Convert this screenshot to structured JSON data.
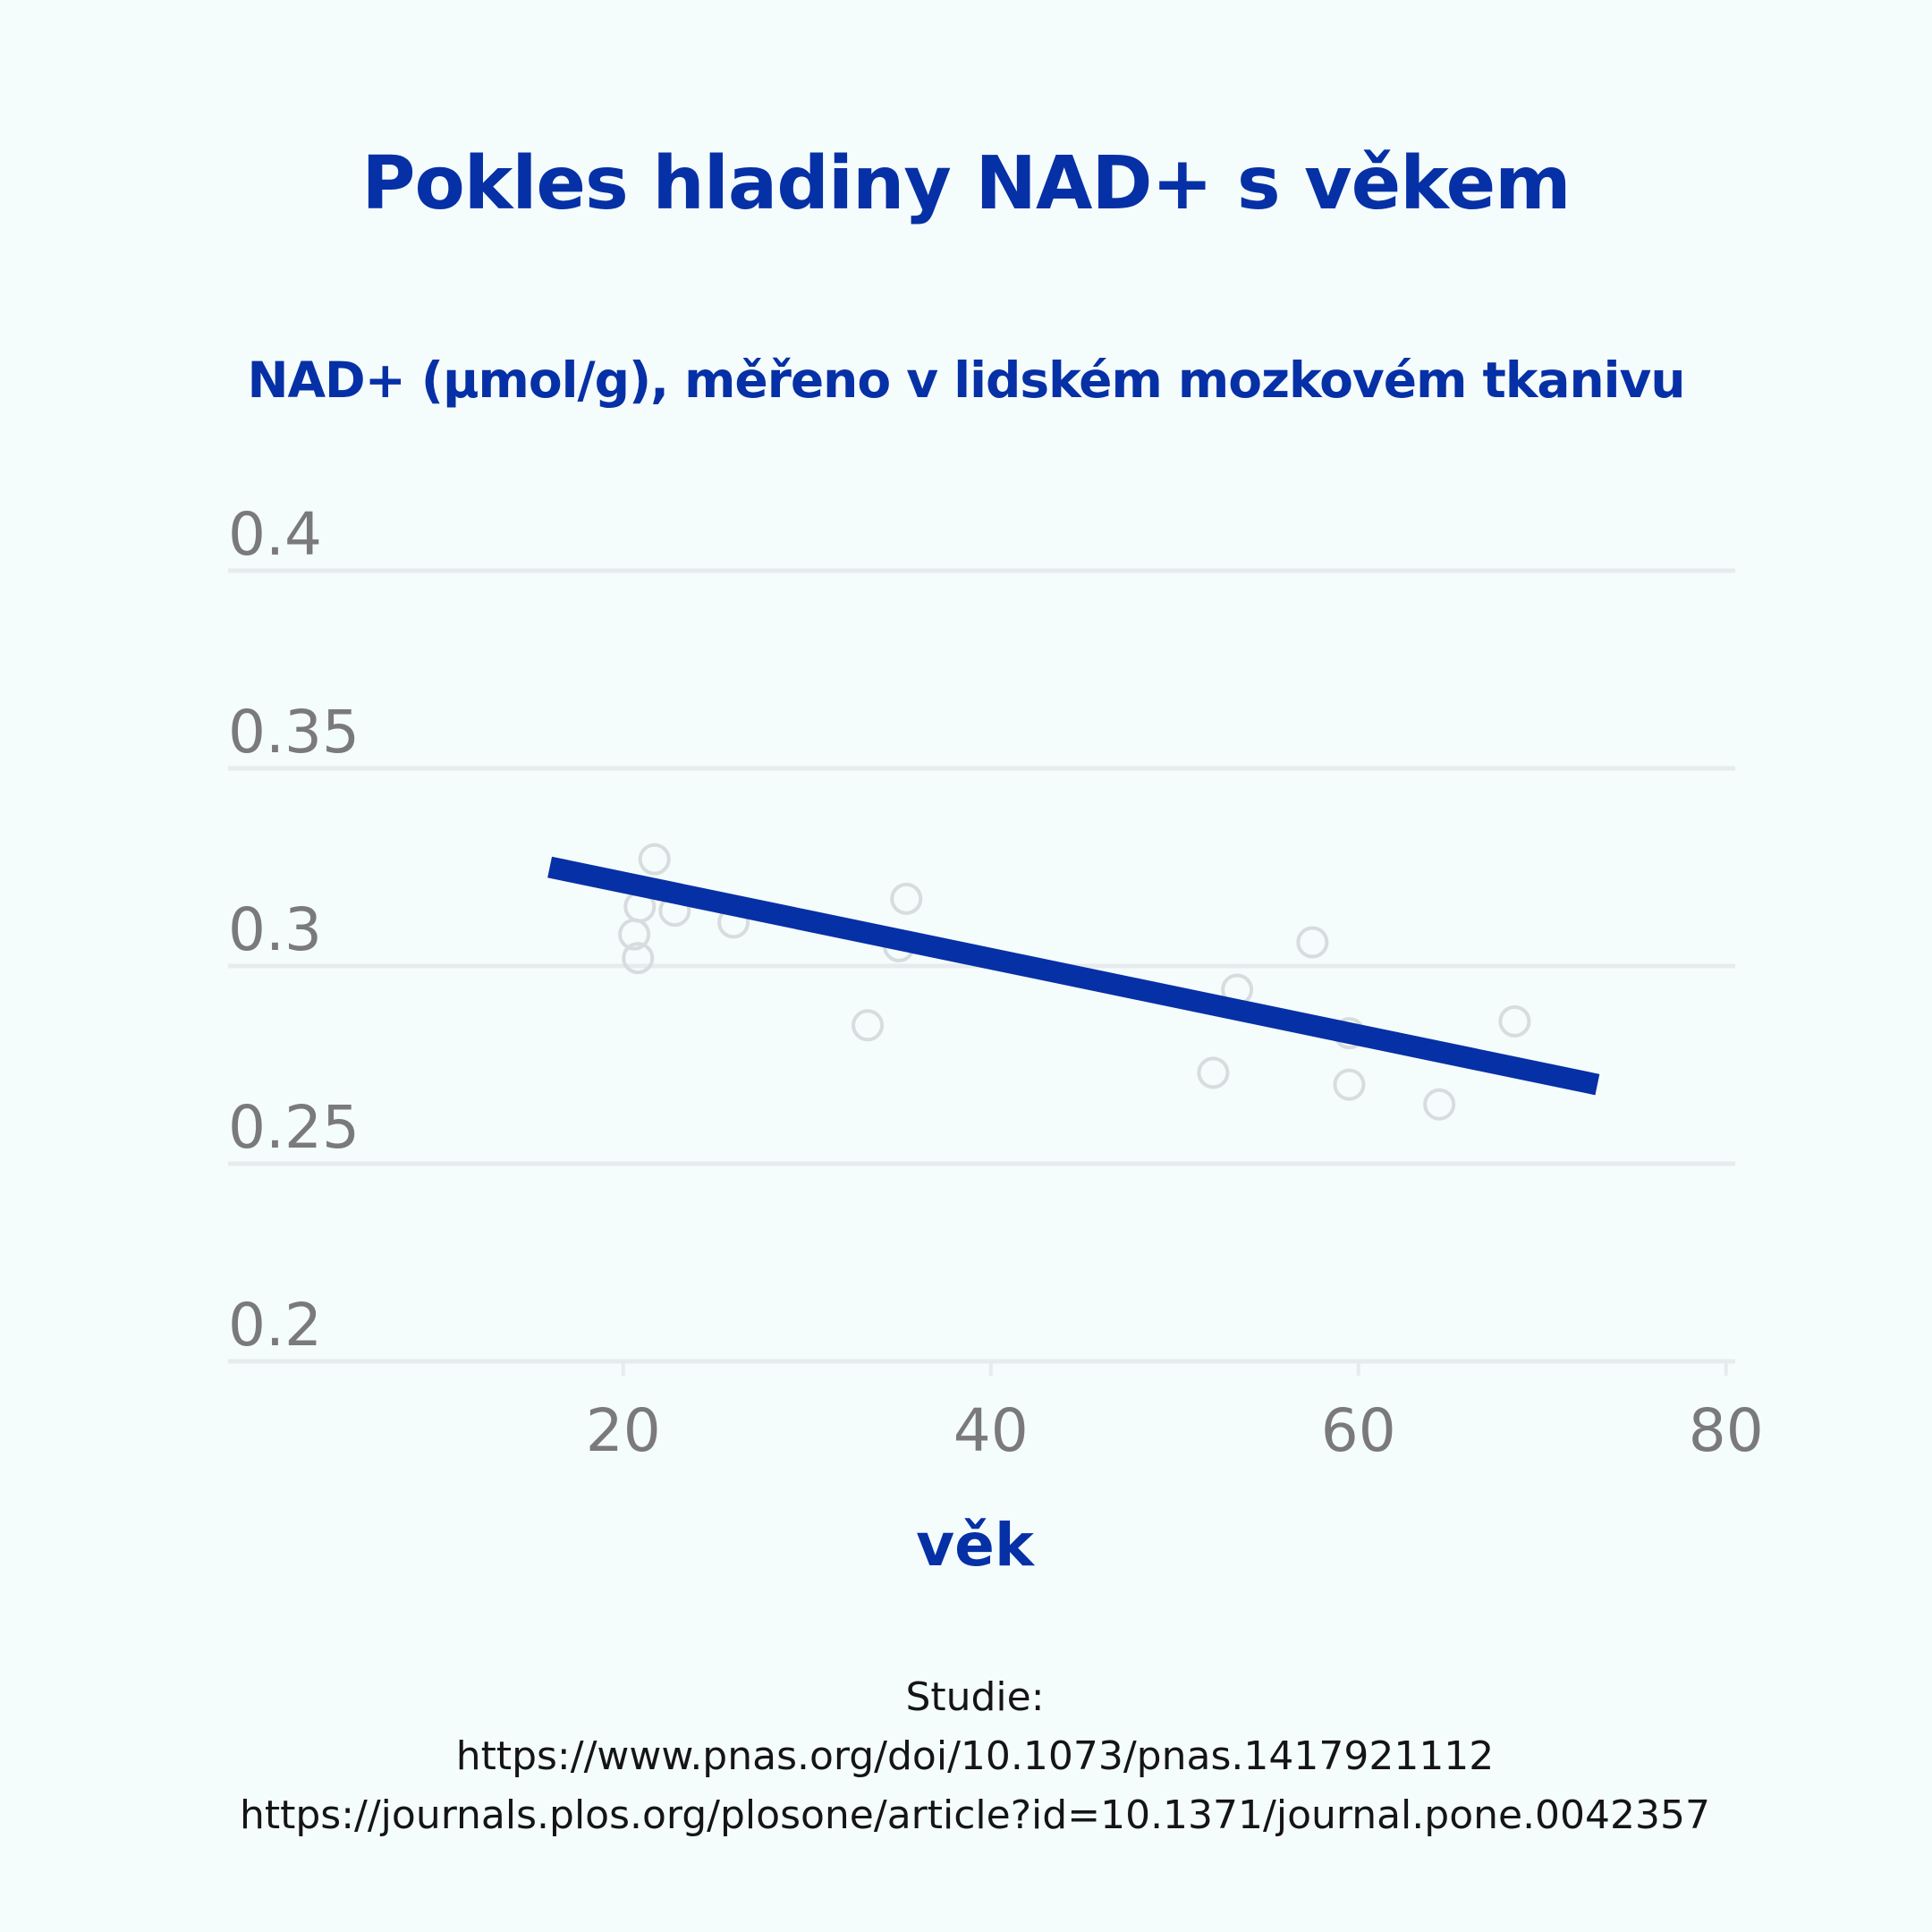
{
  "title": "Pokles hladiny NAD+ s věkem",
  "subtitle": "NAD+ (μmol/g), měřeno v lidském mozkovém tkanivu",
  "source": {
    "label": "Studie:",
    "links": [
      "https://www.pnas.org/doi/10.1073/pnas.1417921112",
      "https://journals.plos.org/plosone/article?id=10.1371/journal.pone.0042357"
    ]
  },
  "colors": {
    "accent": "#0630a6",
    "grid": "#e6ecee",
    "tick_text": "#7a7a7a",
    "point_stroke": "#d7dcde",
    "background": "#f5fcfc"
  },
  "chart_data": {
    "type": "scatter",
    "xlabel": "věk",
    "ylabel": "",
    "xlim": [
      -1.5,
      80.5
    ],
    "ylim": [
      0.2,
      0.4
    ],
    "xticks": [
      20,
      40,
      60,
      80
    ],
    "xtick_labels": [
      "20",
      "40",
      "60",
      "80"
    ],
    "yticks": [
      0.2,
      0.25,
      0.3,
      0.35,
      0.4
    ],
    "ytick_labels": [
      "0.2",
      "0.25",
      "0.3",
      "0.35",
      "0.4"
    ],
    "grid": "horizontal",
    "legend": "none",
    "points": [
      {
        "x": 21.7,
        "y": 0.327
      },
      {
        "x": 20.9,
        "y": 0.315
      },
      {
        "x": 22.8,
        "y": 0.314
      },
      {
        "x": 20.6,
        "y": 0.308
      },
      {
        "x": 20.8,
        "y": 0.302
      },
      {
        "x": 26.0,
        "y": 0.311
      },
      {
        "x": 35.4,
        "y": 0.317
      },
      {
        "x": 35.0,
        "y": 0.305
      },
      {
        "x": 33.3,
        "y": 0.285
      },
      {
        "x": 52.1,
        "y": 0.273
      },
      {
        "x": 53.4,
        "y": 0.294
      },
      {
        "x": 57.5,
        "y": 0.306
      },
      {
        "x": 59.5,
        "y": 0.283
      },
      {
        "x": 59.5,
        "y": 0.27
      },
      {
        "x": 64.4,
        "y": 0.265
      },
      {
        "x": 68.5,
        "y": 0.286
      }
    ],
    "trend_line": {
      "x": [
        16.0,
        73.0
      ],
      "y": [
        0.325,
        0.27
      ]
    }
  }
}
